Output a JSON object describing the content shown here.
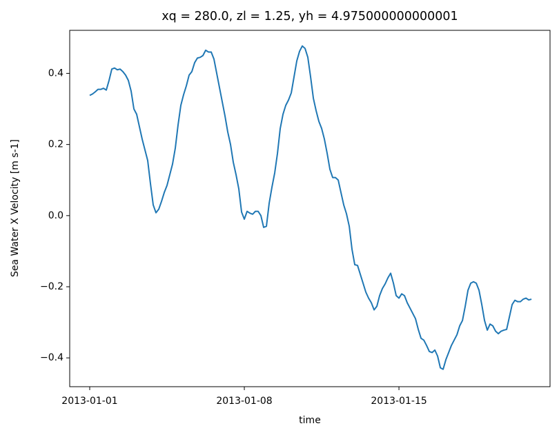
{
  "chart_data": {
    "type": "line",
    "title": "xq = 280.0, zl = 1.25, yh = 4.975000000000001",
    "xlabel": "time",
    "ylabel": "Sea Water X Velocity [m s-1]",
    "color": "#1f77b4",
    "x": [
      0,
      0.125,
      0.25,
      0.375,
      0.5,
      0.625,
      0.75,
      0.875,
      1,
      1.125,
      1.25,
      1.375,
      1.5,
      1.625,
      1.75,
      1.875,
      2,
      2.125,
      2.25,
      2.375,
      2.5,
      2.625,
      2.75,
      2.875,
      3,
      3.125,
      3.25,
      3.375,
      3.5,
      3.625,
      3.75,
      3.875,
      4,
      4.125,
      4.25,
      4.375,
      4.5,
      4.625,
      4.75,
      4.875,
      5,
      5.125,
      5.25,
      5.375,
      5.5,
      5.625,
      5.75,
      5.875,
      6,
      6.125,
      6.25,
      6.375,
      6.5,
      6.625,
      6.75,
      6.875,
      7,
      7.125,
      7.25,
      7.375,
      7.5,
      7.625,
      7.75,
      7.875,
      8,
      8.125,
      8.25,
      8.375,
      8.5,
      8.625,
      8.75,
      8.875,
      9,
      9.125,
      9.25,
      9.375,
      9.5,
      9.625,
      9.75,
      9.875,
      10,
      10.125,
      10.25,
      10.375,
      10.5,
      10.625,
      10.75,
      10.875,
      11,
      11.125,
      11.25,
      11.375,
      11.5,
      11.625,
      11.75,
      11.875,
      12,
      12.125,
      12.25,
      12.375,
      12.5,
      12.625,
      12.75,
      12.875,
      13,
      13.125,
      13.25,
      13.375,
      13.5,
      13.625,
      13.75,
      13.875,
      14,
      14.125,
      14.25,
      14.375,
      14.5,
      14.625,
      14.75,
      14.875,
      15,
      15.125,
      15.25,
      15.375,
      15.5,
      15.625,
      15.75,
      15.875,
      16,
      16.125,
      16.25,
      16.375,
      16.5,
      16.625,
      16.75,
      16.875,
      17,
      17.125,
      17.25,
      17.375,
      17.5,
      17.625,
      17.75,
      17.875,
      18,
      18.125,
      18.25,
      18.375,
      18.5,
      18.625,
      18.75,
      18.875,
      19,
      19.125,
      19.25,
      19.375,
      19.5,
      19.625,
      19.75,
      19.875,
      20
    ],
    "values": [
      0.338,
      0.342,
      0.348,
      0.355,
      0.355,
      0.358,
      0.353,
      0.38,
      0.412,
      0.415,
      0.41,
      0.412,
      0.405,
      0.395,
      0.38,
      0.35,
      0.3,
      0.285,
      0.25,
      0.215,
      0.185,
      0.155,
      0.09,
      0.03,
      0.008,
      0.018,
      0.04,
      0.065,
      0.085,
      0.115,
      0.145,
      0.19,
      0.255,
      0.31,
      0.34,
      0.365,
      0.395,
      0.405,
      0.43,
      0.443,
      0.445,
      0.45,
      0.465,
      0.46,
      0.46,
      0.44,
      0.4,
      0.36,
      0.32,
      0.28,
      0.235,
      0.2,
      0.15,
      0.115,
      0.075,
      0.01,
      -0.01,
      0.012,
      0.007,
      0.004,
      0.012,
      0.012,
      0.0,
      -0.033,
      -0.03,
      0.035,
      0.08,
      0.12,
      0.175,
      0.245,
      0.285,
      0.31,
      0.325,
      0.345,
      0.39,
      0.435,
      0.462,
      0.477,
      0.47,
      0.445,
      0.39,
      0.33,
      0.295,
      0.265,
      0.245,
      0.215,
      0.175,
      0.13,
      0.107,
      0.107,
      0.1,
      0.065,
      0.03,
      0.005,
      -0.03,
      -0.095,
      -0.138,
      -0.14,
      -0.165,
      -0.19,
      -0.215,
      -0.232,
      -0.245,
      -0.265,
      -0.255,
      -0.225,
      -0.205,
      -0.192,
      -0.175,
      -0.162,
      -0.19,
      -0.225,
      -0.232,
      -0.22,
      -0.225,
      -0.245,
      -0.26,
      -0.275,
      -0.29,
      -0.32,
      -0.345,
      -0.35,
      -0.365,
      -0.382,
      -0.385,
      -0.378,
      -0.395,
      -0.428,
      -0.432,
      -0.405,
      -0.385,
      -0.365,
      -0.35,
      -0.335,
      -0.31,
      -0.295,
      -0.255,
      -0.21,
      -0.19,
      -0.186,
      -0.19,
      -0.21,
      -0.25,
      -0.295,
      -0.322,
      -0.305,
      -0.31,
      -0.325,
      -0.332,
      -0.325,
      -0.322,
      -0.32,
      -0.285,
      -0.25,
      -0.238,
      -0.242,
      -0.242,
      -0.235,
      -0.232,
      -0.237,
      -0.235
    ],
    "xlim": [
      -0.906,
      20.84
    ],
    "ylim": [
      -0.481,
      0.521
    ],
    "xticks": [
      {
        "value": 0,
        "label": "2013-01-01"
      },
      {
        "value": 7,
        "label": "2013-01-08"
      },
      {
        "value": 14,
        "label": "2013-01-15"
      }
    ],
    "yticks": [
      {
        "value": -0.4,
        "label": "−0.4"
      },
      {
        "value": -0.2,
        "label": "−0.2"
      },
      {
        "value": 0,
        "label": "0.0"
      },
      0.2,
      0.4
    ],
    "grid": false
  }
}
